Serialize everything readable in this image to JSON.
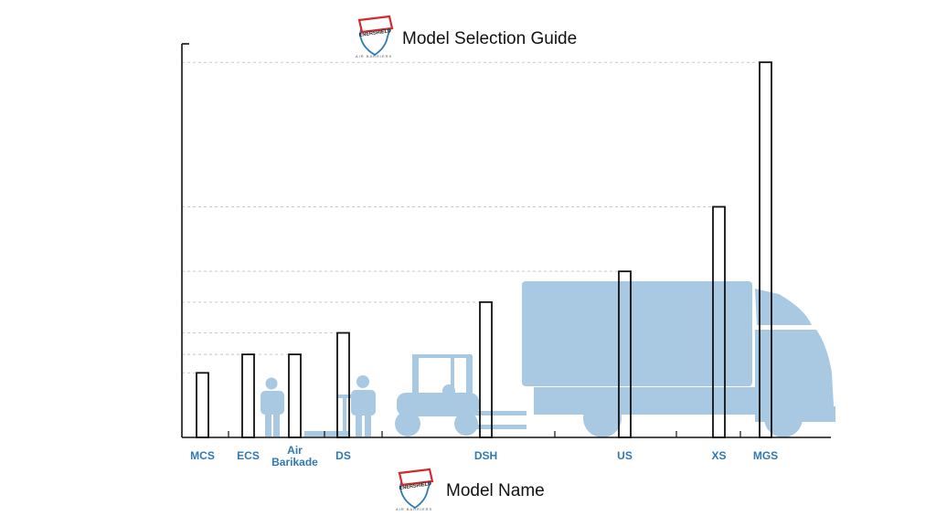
{
  "header": {
    "title": "Model Selection Guide",
    "brand_name": "ENERSHIELD",
    "brand_tagline": "AIR BARRIERS"
  },
  "footer": {
    "title": "Model Name",
    "brand_name": "ENERSHIELD",
    "brand_tagline": "AIR BARRIERS"
  },
  "colors": {
    "bar_stroke": "#111111",
    "label": "#2f79b5",
    "silhouette": "#a9c8e2",
    "grid": "#c9c9c9",
    "logo_red": "#d12b2f",
    "logo_blue": "#2f79b5"
  },
  "chart_data": {
    "type": "bar",
    "categories": [
      "MCS",
      "ECS",
      "Air Barikade",
      "DS",
      "DSH",
      "US",
      "XS",
      "MGS"
    ],
    "values": [
      10.5,
      13.5,
      13.5,
      17,
      22,
      27,
      37.5,
      61
    ],
    "ylim": [
      0,
      64
    ],
    "grid": "dashed at bar heights",
    "title": "Model Selection Guide",
    "xlabel": "Model Name",
    "ylabel": ""
  },
  "illustrations": [
    "person-icon",
    "pallet-jack-icon",
    "person-icon",
    "forklift-icon",
    "truck-icon"
  ]
}
